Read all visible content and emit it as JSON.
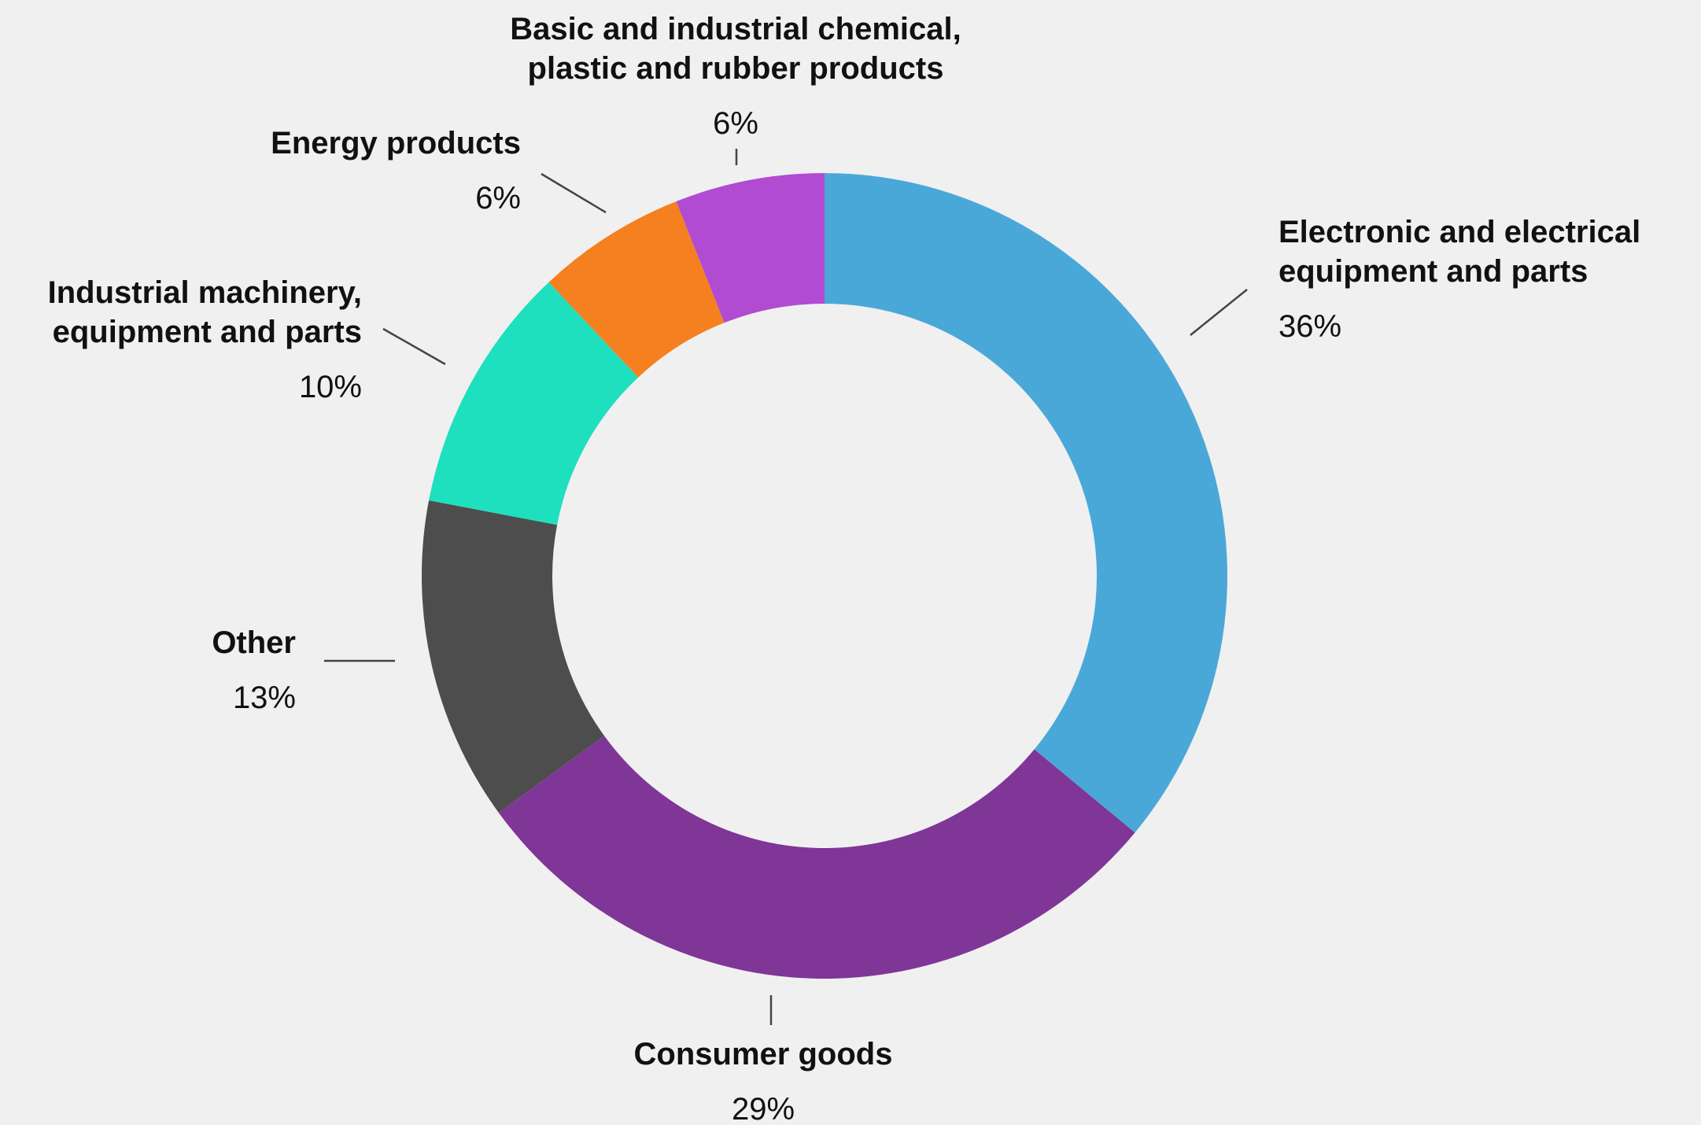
{
  "chart_data": {
    "type": "pie",
    "donut": true,
    "value_unit": "%",
    "slices": [
      {
        "name": "Electronic and electrical equipment and parts",
        "label_lines": [
          "Electronic and electrical",
          "equipment and parts"
        ],
        "value": 36,
        "value_label": "36%",
        "color": "#4aa8d8"
      },
      {
        "name": "Consumer goods",
        "label_lines": [
          "Consumer goods"
        ],
        "value": 29,
        "value_label": "29%",
        "color": "#7f3697"
      },
      {
        "name": "Other",
        "label_lines": [
          "Other"
        ],
        "value": 13,
        "value_label": "13%",
        "color": "#4d4d4d"
      },
      {
        "name": "Industrial machinery, equipment and parts",
        "label_lines": [
          "Industrial machinery,",
          "equipment and parts"
        ],
        "value": 10,
        "value_label": "10%",
        "color": "#1ee0be"
      },
      {
        "name": "Energy products",
        "label_lines": [
          "Energy products"
        ],
        "value": 6,
        "value_label": "6%",
        "color": "#f5801f"
      },
      {
        "name": "Basic and industrial chemical, plastic and rubber products",
        "label_lines": [
          "Basic and industrial chemical,",
          "plastic and rubber products"
        ],
        "value": 6,
        "value_label": "6%",
        "color": "#b04bd2"
      }
    ],
    "legend": "none"
  }
}
